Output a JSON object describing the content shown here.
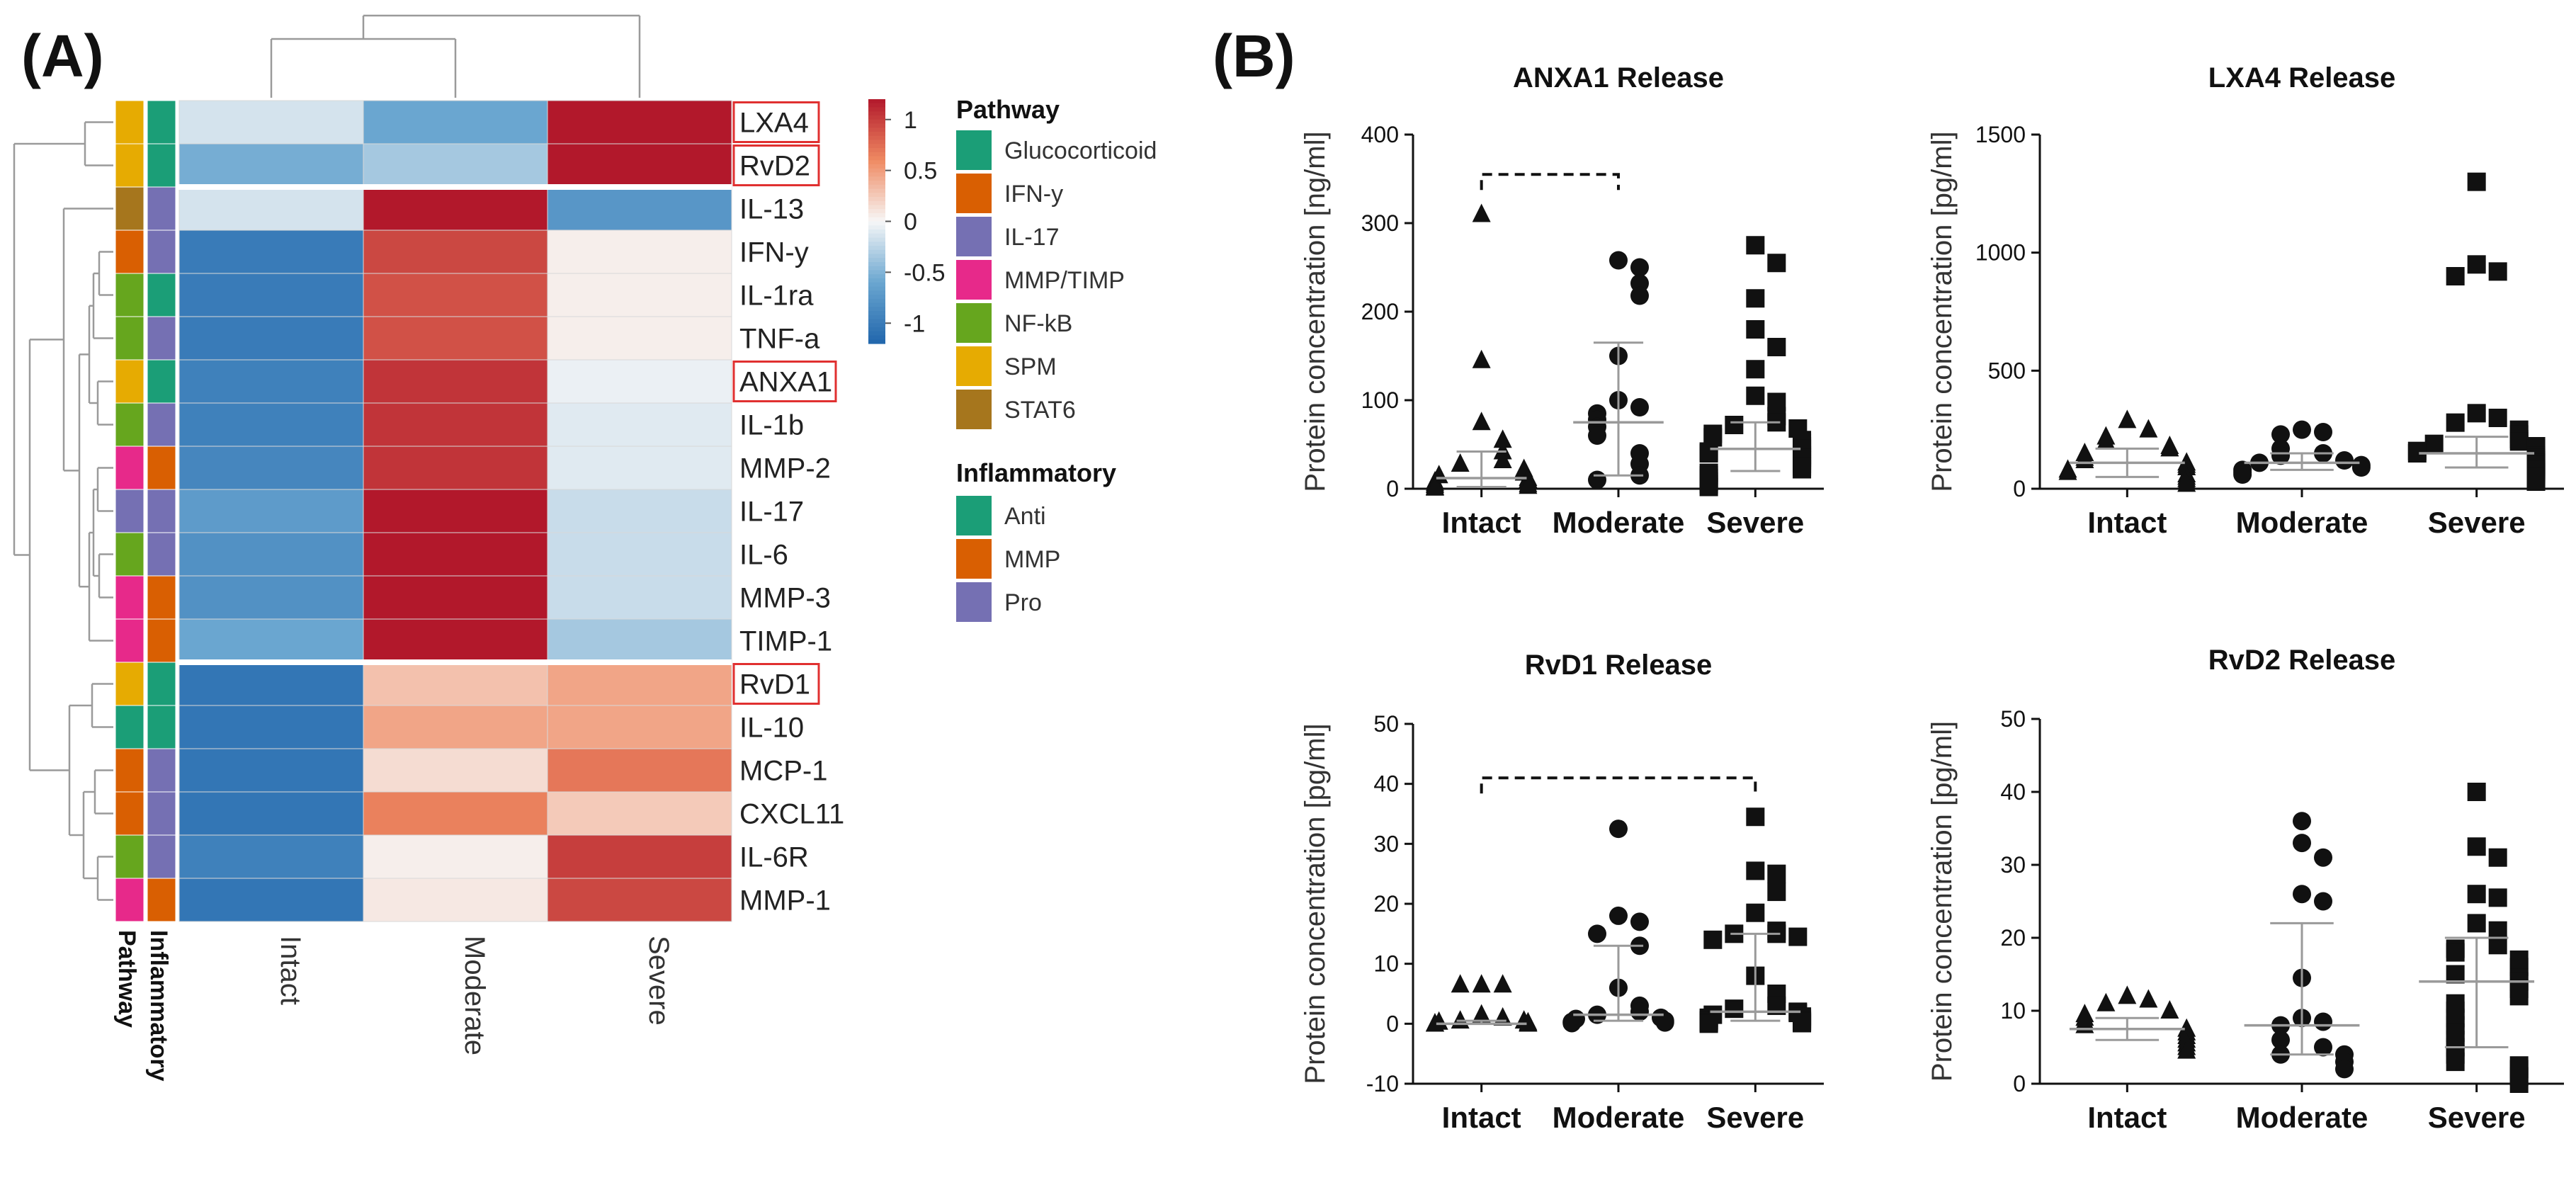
{
  "figure": {
    "panel_a_label": "(A)",
    "panel_b_label": "(B)"
  },
  "heatmap": {
    "columns": [
      "Intact",
      "Moderate",
      "Severe"
    ],
    "side_labels": [
      "Pathway",
      "Inflammatory"
    ],
    "colorbar_ticks": [
      "1",
      "0.5",
      "0",
      "-0.5",
      "-1"
    ],
    "colorbar_values": [
      1,
      0.5,
      0,
      -0.5,
      -1
    ],
    "colorbar_range": [
      -1.2,
      1.2
    ],
    "rows": [
      {
        "name": "LXA4",
        "boxed": true,
        "pathway": "SPM",
        "inflammatory": "Anti",
        "values": [
          -0.15,
          -0.6,
          1.2
        ]
      },
      {
        "name": "RvD2",
        "boxed": true,
        "pathway": "SPM",
        "inflammatory": "Anti",
        "values": [
          -0.55,
          -0.35,
          1.2
        ]
      },
      {
        "name": "IL-13",
        "boxed": false,
        "pathway": "STAT6",
        "inflammatory": "Pro",
        "values": [
          -0.15,
          1.2,
          -0.75
        ]
      },
      {
        "name": "IFN-y",
        "boxed": false,
        "pathway": "IFN-y",
        "inflammatory": "Pro",
        "values": [
          -1.0,
          0.95,
          0.05
        ]
      },
      {
        "name": "IL-1ra",
        "boxed": false,
        "pathway": "NF-kB",
        "inflammatory": "Anti",
        "values": [
          -1.0,
          0.9,
          0.05
        ]
      },
      {
        "name": "TNF-a",
        "boxed": false,
        "pathway": "NF-kB",
        "inflammatory": "Pro",
        "values": [
          -1.0,
          0.9,
          0.05
        ]
      },
      {
        "name": "ANXA1",
        "boxed": true,
        "pathway": "SPM",
        "inflammatory": "Anti",
        "values": [
          -0.95,
          1.05,
          -0.05
        ]
      },
      {
        "name": "IL-1b",
        "boxed": false,
        "pathway": "NF-kB",
        "inflammatory": "Pro",
        "values": [
          -0.95,
          1.05,
          -0.1
        ]
      },
      {
        "name": "MMP-2",
        "boxed": false,
        "pathway": "MMP/TIMP",
        "inflammatory": "MMP",
        "values": [
          -0.9,
          1.05,
          -0.1
        ]
      },
      {
        "name": "IL-17",
        "boxed": false,
        "pathway": "IL-17",
        "inflammatory": "Pro",
        "values": [
          -0.7,
          1.2,
          -0.2
        ]
      },
      {
        "name": "IL-6",
        "boxed": false,
        "pathway": "NF-kB",
        "inflammatory": "Pro",
        "values": [
          -0.8,
          1.2,
          -0.2
        ]
      },
      {
        "name": "MMP-3",
        "boxed": false,
        "pathway": "MMP/TIMP",
        "inflammatory": "MMP",
        "values": [
          -0.8,
          1.2,
          -0.2
        ]
      },
      {
        "name": "TIMP-1",
        "boxed": false,
        "pathway": "MMP/TIMP",
        "inflammatory": "MMP",
        "values": [
          -0.6,
          1.2,
          -0.35
        ]
      },
      {
        "name": "RvD1",
        "boxed": true,
        "pathway": "SPM",
        "inflammatory": "Anti",
        "values": [
          -1.05,
          0.3,
          0.45
        ]
      },
      {
        "name": "IL-10",
        "boxed": false,
        "pathway": "Glucocorticoid",
        "inflammatory": "Anti",
        "values": [
          -1.05,
          0.45,
          0.45
        ]
      },
      {
        "name": "MCP-1",
        "boxed": false,
        "pathway": "IFN-y",
        "inflammatory": "Pro",
        "values": [
          -1.05,
          0.15,
          0.7
        ]
      },
      {
        "name": "CXCL11",
        "boxed": false,
        "pathway": "IFN-y",
        "inflammatory": "Pro",
        "values": [
          -1.05,
          0.65,
          0.25
        ]
      },
      {
        "name": "IL-6R",
        "boxed": false,
        "pathway": "NF-kB",
        "inflammatory": "Pro",
        "values": [
          -0.95,
          0.05,
          1.0
        ]
      },
      {
        "name": "MMP-1",
        "boxed": false,
        "pathway": "MMP/TIMP",
        "inflammatory": "MMP",
        "values": [
          -1.05,
          0.08,
          0.95
        ]
      }
    ],
    "legend": {
      "pathway_title": "Pathway",
      "pathway": [
        {
          "label": "Glucocorticoid",
          "color": "#1b9e77"
        },
        {
          "label": "IFN-y",
          "color": "#d95f02"
        },
        {
          "label": "IL-17",
          "color": "#7570b3"
        },
        {
          "label": "MMP/TIMP",
          "color": "#e7298a"
        },
        {
          "label": "NF-kB",
          "color": "#66a61e"
        },
        {
          "label": "SPM",
          "color": "#e6ab02"
        },
        {
          "label": "STAT6",
          "color": "#a6761d"
        }
      ],
      "inflammatory_title": "Inflammatory",
      "inflammatory": [
        {
          "label": "Anti",
          "color": "#1b9e77"
        },
        {
          "label": "MMP",
          "color": "#d95f02"
        },
        {
          "label": "Pro",
          "color": "#7570b3"
        }
      ]
    }
  },
  "chart_data": [
    {
      "type": "scatter",
      "title": "ANXA1 Release",
      "ylabel": "Protein concentration [ng/ml]",
      "ylim": [
        0,
        400
      ],
      "yticks": [
        0,
        100,
        200,
        300,
        400
      ],
      "categories": [
        "Intact",
        "Moderate",
        "Severe"
      ],
      "markers": [
        "triangle",
        "circle",
        "square"
      ],
      "bracket": {
        "from": 0,
        "to": 1,
        "y": 355
      },
      "groups": [
        {
          "name": "Intact",
          "median": 12,
          "q1": 2,
          "q3": 42,
          "points": [
            310,
            145,
            75,
            55,
            42,
            32,
            28,
            22,
            18,
            15,
            12,
            10,
            8,
            6,
            5,
            4,
            3,
            2,
            1
          ]
        },
        {
          "name": "Moderate",
          "median": 75,
          "q1": 15,
          "q3": 165,
          "points": [
            258,
            250,
            232,
            218,
            150,
            100,
            92,
            85,
            78,
            70,
            60,
            40,
            28,
            15,
            10
          ]
        },
        {
          "name": "Severe",
          "median": 45,
          "q1": 20,
          "q3": 75,
          "points": [
            275,
            255,
            215,
            180,
            160,
            135,
            105,
            98,
            82,
            75,
            72,
            68,
            62,
            58,
            55,
            52,
            48,
            45,
            42,
            40,
            38,
            35,
            32,
            28,
            25,
            22,
            18,
            15,
            12,
            8,
            5,
            2
          ]
        }
      ]
    },
    {
      "type": "scatter",
      "title": "LXA4 Release",
      "ylabel": "Protein concentration [pg/ml]",
      "ylim": [
        0,
        1500
      ],
      "yticks": [
        0,
        500,
        1000,
        1500
      ],
      "categories": [
        "Intact",
        "Moderate",
        "Severe"
      ],
      "markers": [
        "triangle",
        "circle",
        "square"
      ],
      "groups": [
        {
          "name": "Intact",
          "median": 110,
          "q1": 50,
          "q3": 170,
          "points": [
            290,
            250,
            220,
            200,
            180,
            170,
            150,
            130,
            120,
            110,
            100,
            90,
            80,
            70,
            60,
            50,
            40,
            30,
            20
          ]
        },
        {
          "name": "Moderate",
          "median": 110,
          "q1": 80,
          "q3": 150,
          "points": [
            250,
            240,
            230,
            170,
            150,
            140,
            120,
            110,
            100,
            90,
            80,
            70,
            60
          ]
        },
        {
          "name": "Severe",
          "median": 150,
          "q1": 90,
          "q3": 220,
          "points": [
            1300,
            950,
            920,
            900,
            320,
            300,
            280,
            250,
            230,
            210,
            200,
            190,
            180,
            170,
            160,
            150,
            140,
            130,
            120,
            110,
            100,
            90,
            80,
            70,
            60,
            50,
            40,
            30
          ]
        }
      ]
    },
    {
      "type": "scatter",
      "title": "RvD1 Release",
      "ylabel": "Protein concentration [pg/ml]",
      "ylim": [
        -10,
        50
      ],
      "yticks": [
        -10,
        0,
        10,
        20,
        30,
        40,
        50
      ],
      "categories": [
        "Intact",
        "Moderate",
        "Severe"
      ],
      "markers": [
        "triangle",
        "circle",
        "square"
      ],
      "bracket": {
        "from": 0,
        "to": 2,
        "y": 41
      },
      "groups": [
        {
          "name": "Intact",
          "median": 0,
          "q1": 0,
          "q3": 0.5,
          "points": [
            6.5,
            6.5,
            6.5,
            1.5,
            1,
            0.5,
            0.5,
            0.3,
            0.2,
            0,
            0,
            0,
            0,
            0,
            0,
            0
          ]
        },
        {
          "name": "Moderate",
          "median": 1.5,
          "q1": 0.5,
          "q3": 13,
          "points": [
            32.5,
            18,
            17,
            15,
            13,
            6,
            3,
            2,
            1.5,
            1,
            0.8,
            0.5,
            0.3,
            0.2,
            0.1
          ]
        },
        {
          "name": "Severe",
          "median": 2,
          "q1": 0.5,
          "q3": 15,
          "points": [
            34.5,
            25.5,
            25,
            22,
            18.5,
            15.5,
            15,
            15,
            14.5,
            14,
            8,
            5,
            3,
            2.5,
            2,
            1.8,
            1.5,
            1.2,
            1,
            0.8,
            0.6,
            0.5,
            0.4,
            0.3,
            0.2,
            0.1,
            0
          ]
        }
      ]
    },
    {
      "type": "scatter",
      "title": "RvD2 Release",
      "ylabel": "Protein concentration [pg/ml]",
      "ylim": [
        0,
        50
      ],
      "yticks": [
        0,
        10,
        20,
        30,
        40,
        50
      ],
      "categories": [
        "Intact",
        "Moderate",
        "Severe"
      ],
      "markers": [
        "triangle",
        "circle",
        "square"
      ],
      "groups": [
        {
          "name": "Intact",
          "median": 7.5,
          "q1": 6,
          "q3": 9,
          "points": [
            12,
            11.5,
            11,
            10,
            9.5,
            9,
            8.5,
            8,
            7.5,
            7,
            6.5,
            6,
            5.5,
            5,
            4.5
          ]
        },
        {
          "name": "Moderate",
          "median": 8,
          "q1": 4,
          "q3": 22,
          "points": [
            36,
            33,
            31,
            26,
            25,
            14.5,
            9,
            8.5,
            8,
            6,
            5,
            4,
            4,
            3,
            2
          ]
        },
        {
          "name": "Severe",
          "median": 14,
          "q1": 5,
          "q3": 20,
          "points": [
            40,
            32.5,
            31,
            26,
            25.5,
            22,
            21,
            19,
            18.5,
            18,
            17,
            16,
            15,
            14.5,
            14,
            13,
            12,
            11,
            10,
            9,
            8,
            7,
            6,
            5,
            4,
            3,
            2.5,
            2,
            1,
            0
          ]
        }
      ]
    }
  ]
}
